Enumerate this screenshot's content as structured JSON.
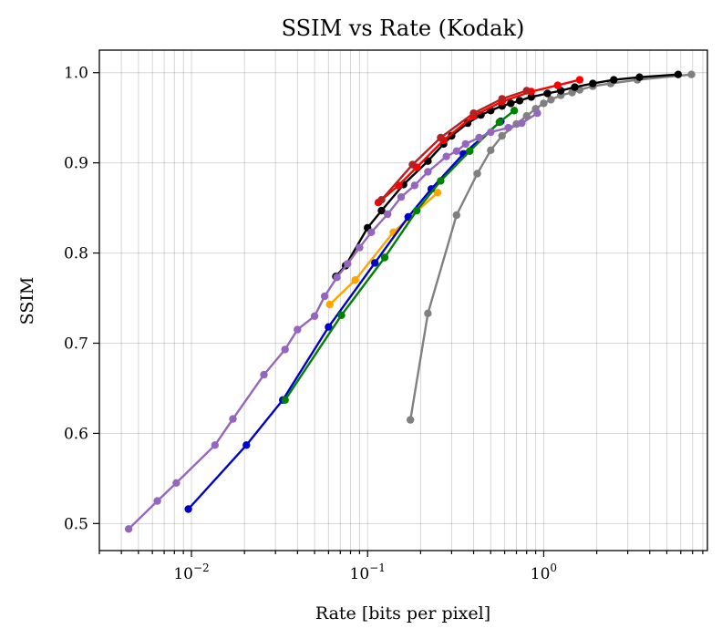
{
  "chart_data": {
    "type": "line",
    "title": "SSIM vs Rate (Kodak)",
    "xlabel": "Rate [bits per pixel]",
    "ylabel": "SSIM",
    "xscale": "log",
    "xlim": [
      0.003,
      8.5
    ],
    "ylim": [
      0.47,
      1.025
    ],
    "grid": true,
    "x_major_ticks": [
      {
        "value": 0.01,
        "base": "10",
        "exp": "−2"
      },
      {
        "value": 0.1,
        "base": "10",
        "exp": "−1"
      },
      {
        "value": 1,
        "base": "10",
        "exp": "0"
      }
    ],
    "y_ticks": [
      {
        "value": 0.5,
        "label": "0.5"
      },
      {
        "value": 0.6,
        "label": "0.6"
      },
      {
        "value": 0.7,
        "label": "0.7"
      },
      {
        "value": 0.8,
        "label": "0.8"
      },
      {
        "value": 0.9,
        "label": "0.9"
      },
      {
        "value": 1.0,
        "label": "1.0"
      }
    ],
    "series": [
      {
        "color": "#808080",
        "x": [
          0.175,
          0.22,
          0.32,
          0.42,
          0.5,
          0.58,
          0.7,
          0.8,
          0.9,
          1.0,
          1.1,
          1.25,
          1.45,
          1.6,
          1.9,
          2.4,
          3.4,
          6.9
        ],
        "y": [
          0.615,
          0.733,
          0.842,
          0.888,
          0.914,
          0.93,
          0.943,
          0.952,
          0.96,
          0.966,
          0.97,
          0.975,
          0.978,
          0.981,
          0.985,
          0.988,
          0.992,
          0.998
        ]
      },
      {
        "color": "#000000",
        "x": [
          0.066,
          0.075,
          0.1,
          0.12,
          0.16,
          0.22,
          0.27,
          0.3,
          0.37,
          0.44,
          0.5,
          0.58,
          0.65,
          0.73,
          0.85,
          1.05,
          1.25,
          1.5,
          1.9,
          2.5,
          3.5,
          5.8
        ],
        "y": [
          0.774,
          0.786,
          0.828,
          0.847,
          0.876,
          0.902,
          0.921,
          0.93,
          0.944,
          0.953,
          0.958,
          0.963,
          0.966,
          0.969,
          0.973,
          0.977,
          0.98,
          0.984,
          0.988,
          0.992,
          0.995,
          0.998
        ]
      },
      {
        "color": "#ff0000",
        "x": [
          0.115,
          0.15,
          0.19,
          0.27,
          0.4,
          0.58,
          0.85,
          1.2,
          1.6
        ],
        "y": [
          0.856,
          0.875,
          0.895,
          0.925,
          0.952,
          0.968,
          0.979,
          0.986,
          0.992
        ]
      },
      {
        "color": "#b22222",
        "x": [
          0.12,
          0.18,
          0.26,
          0.4,
          0.58,
          0.8
        ],
        "y": [
          0.859,
          0.898,
          0.928,
          0.955,
          0.971,
          0.98
        ]
      },
      {
        "color": "#ffa500",
        "x": [
          0.061,
          0.085,
          0.14,
          0.25
        ],
        "y": [
          0.743,
          0.77,
          0.823,
          0.867
        ]
      },
      {
        "color": "#0000cc",
        "x": [
          0.0096,
          0.0205,
          0.033,
          0.06,
          0.11,
          0.17,
          0.23,
          0.35,
          0.57
        ],
        "y": [
          0.516,
          0.587,
          0.637,
          0.718,
          0.789,
          0.84,
          0.871,
          0.91,
          0.946
        ]
      },
      {
        "color": "#008000",
        "x": [
          0.034,
          0.071,
          0.125,
          0.19,
          0.26,
          0.38,
          0.56,
          0.68
        ],
        "y": [
          0.637,
          0.731,
          0.795,
          0.847,
          0.88,
          0.913,
          0.945,
          0.958
        ]
      },
      {
        "color": "#9467bd",
        "x": [
          0.0044,
          0.0064,
          0.0082,
          0.0136,
          0.0172,
          0.0258,
          0.034,
          0.04,
          0.05,
          0.057,
          0.067,
          0.077,
          0.09,
          0.105,
          0.13,
          0.155,
          0.185,
          0.22,
          0.28,
          0.32,
          0.36,
          0.43,
          0.5,
          0.63,
          0.75,
          0.92
        ],
        "y": [
          0.494,
          0.525,
          0.545,
          0.587,
          0.616,
          0.665,
          0.693,
          0.715,
          0.73,
          0.752,
          0.773,
          0.788,
          0.806,
          0.823,
          0.843,
          0.862,
          0.875,
          0.89,
          0.907,
          0.913,
          0.921,
          0.928,
          0.934,
          0.939,
          0.944,
          0.955
        ]
      }
    ]
  }
}
